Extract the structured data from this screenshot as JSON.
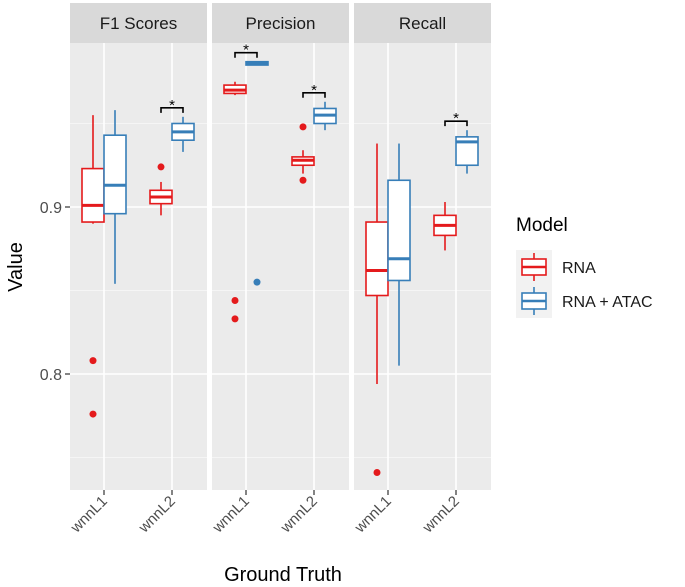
{
  "chart_data": {
    "type": "box",
    "ylabel": "Value",
    "xlabel": "Ground Truth",
    "yticks": [
      0.8,
      0.9
    ],
    "ylim": [
      0.73,
      1.0
    ],
    "legend": {
      "title": "Model",
      "position": "right",
      "entries": [
        {
          "name": "RNA",
          "color": "#e41a1c"
        },
        {
          "name": "RNA + ATAC",
          "color": "#377eb8"
        }
      ]
    },
    "categories": [
      "wnnL1",
      "wnnL2"
    ],
    "significance_marker": "*",
    "facets": [
      {
        "title": "F1 Scores",
        "groups": [
          {
            "category": "wnnL1",
            "significant": false,
            "boxes": [
              {
                "series": "RNA",
                "min": 0.89,
                "q1": 0.891,
                "median": 0.901,
                "q3": 0.923,
                "max": 0.955,
                "outliers": [
                  0.808,
                  0.776
                ]
              },
              {
                "series": "RNA + ATAC",
                "min": 0.854,
                "q1": 0.896,
                "median": 0.913,
                "q3": 0.943,
                "max": 0.958,
                "outliers": []
              }
            ]
          },
          {
            "category": "wnnL2",
            "significant": true,
            "boxes": [
              {
                "series": "RNA",
                "min": 0.895,
                "q1": 0.902,
                "median": 0.906,
                "q3": 0.91,
                "max": 0.915,
                "outliers": [
                  0.924
                ]
              },
              {
                "series": "RNA + ATAC",
                "min": 0.933,
                "q1": 0.94,
                "median": 0.945,
                "q3": 0.95,
                "max": 0.954,
                "outliers": []
              }
            ]
          }
        ]
      },
      {
        "title": "Precision",
        "groups": [
          {
            "category": "wnnL1",
            "significant": true,
            "boxes": [
              {
                "series": "RNA",
                "min": 0.967,
                "q1": 0.968,
                "median": 0.97,
                "q3": 0.973,
                "max": 0.975,
                "outliers": [
                  0.844,
                  0.833
                ]
              },
              {
                "series": "RNA + ATAC",
                "min": 0.985,
                "q1": 0.985,
                "median": 0.986,
                "q3": 0.987,
                "max": 0.987,
                "outliers": [
                  0.855
                ]
              }
            ]
          },
          {
            "category": "wnnL2",
            "significant": true,
            "boxes": [
              {
                "series": "RNA",
                "min": 0.92,
                "q1": 0.925,
                "median": 0.928,
                "q3": 0.93,
                "max": 0.934,
                "outliers": [
                  0.948,
                  0.916
                ]
              },
              {
                "series": "RNA + ATAC",
                "min": 0.946,
                "q1": 0.95,
                "median": 0.955,
                "q3": 0.959,
                "max": 0.963,
                "outliers": []
              }
            ]
          }
        ]
      },
      {
        "title": "Recall",
        "groups": [
          {
            "category": "wnnL1",
            "significant": false,
            "boxes": [
              {
                "series": "RNA",
                "min": 0.794,
                "q1": 0.847,
                "median": 0.862,
                "q3": 0.891,
                "max": 0.938,
                "outliers": [
                  0.741
                ]
              },
              {
                "series": "RNA + ATAC",
                "min": 0.805,
                "q1": 0.856,
                "median": 0.869,
                "q3": 0.916,
                "max": 0.938,
                "outliers": []
              }
            ]
          },
          {
            "category": "wnnL2",
            "significant": true,
            "boxes": [
              {
                "series": "RNA",
                "min": 0.874,
                "q1": 0.883,
                "median": 0.889,
                "q3": 0.895,
                "max": 0.903,
                "outliers": []
              },
              {
                "series": "RNA + ATAC",
                "min": 0.92,
                "q1": 0.925,
                "median": 0.939,
                "q3": 0.942,
                "max": 0.946,
                "outliers": []
              }
            ]
          }
        ]
      }
    ]
  }
}
